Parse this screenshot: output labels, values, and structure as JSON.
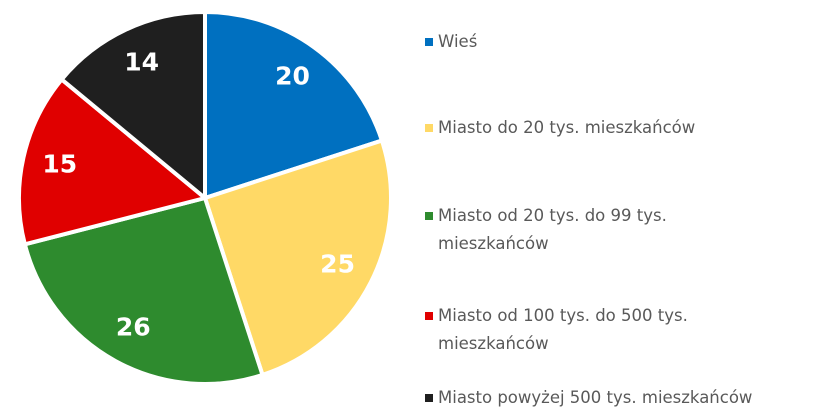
{
  "chart_data": {
    "type": "pie",
    "categories": [
      "Wieś",
      "Miasto do 20 tys. mieszkańców",
      "Miasto od 20 tys. do 99 tys. mieszkańców",
      "Miasto od 100 tys. do 500 tys. mieszkańców",
      "Miasto powyżej 500 tys. mieszkańców"
    ],
    "values": [
      20,
      25,
      26,
      15,
      14
    ],
    "colors": [
      "#0070c0",
      "#ffd966",
      "#2e8b2e",
      "#e00000",
      "#1f1f1f"
    ],
    "legend": "right"
  }
}
